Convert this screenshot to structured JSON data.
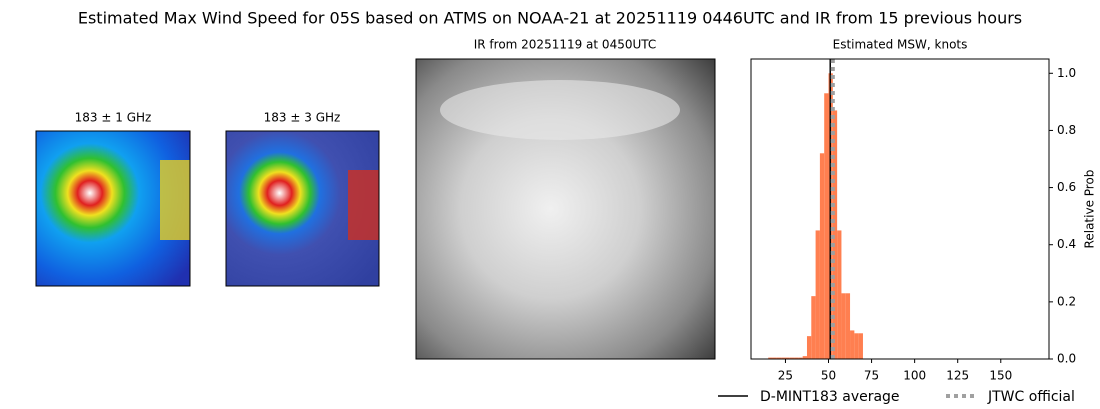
{
  "title": "Estimated Max Wind Speed for 05S based on ATMS on NOAA-21 at 20251119 0446UTC and IR from 15 previous hours",
  "panels": [
    {
      "title": "183 ± 1 GHz"
    },
    {
      "title": "183 ± 3 GHz"
    },
    {
      "title": "IR from 20251119 at 0450UTC"
    }
  ],
  "chart_data": {
    "type": "histogram",
    "title": "Estimated MSW, knots",
    "ylabel": "Relative Prob",
    "bins": [
      15,
      17.5,
      20,
      22.5,
      25,
      27.5,
      30,
      32.5,
      35,
      37.5,
      40,
      42.5,
      45,
      47.5,
      50,
      52.5,
      55,
      57.5,
      60,
      62.5,
      65,
      67.5,
      70
    ],
    "values": [
      0.005,
      0.005,
      0.005,
      0.005,
      0.005,
      0.005,
      0.005,
      0.005,
      0.01,
      0.08,
      0.22,
      0.45,
      0.72,
      0.93,
      1.0,
      0.87,
      0.45,
      0.23,
      0.23,
      0.1,
      0.09,
      0.09
    ],
    "color": "#ff7f50",
    "xlim": [
      5,
      178
    ],
    "xticks": [
      25,
      50,
      75,
      100,
      125,
      150
    ],
    "ylim": [
      0,
      1.05
    ],
    "yticks": [
      {
        "value": 0,
        "label": "0.0"
      },
      {
        "value": 0.2,
        "label": "0.2"
      },
      {
        "value": 0.4,
        "label": "0.4"
      },
      {
        "value": 0.6,
        "label": "0.6"
      },
      {
        "value": 0.8,
        "label": "0.8"
      },
      {
        "value": 1.0,
        "label": "1.0"
      }
    ],
    "lines": [
      {
        "name": "D-MINT183 average",
        "x": 51,
        "color": "#000000",
        "dash": false
      },
      {
        "name": "JTWC official",
        "x": 52.5,
        "color": "#a0a0a0",
        "dash": true
      }
    ]
  }
}
